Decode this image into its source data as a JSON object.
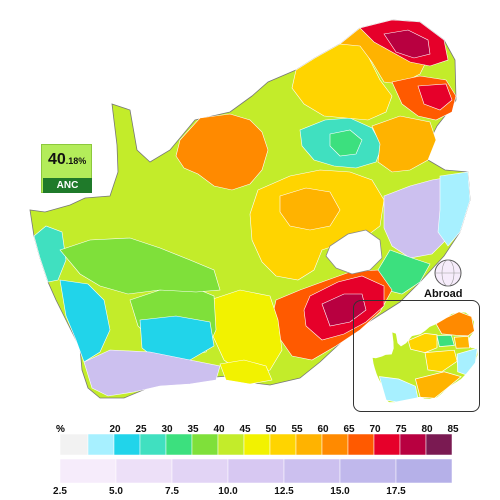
{
  "headline": {
    "value_main": "40",
    "value_frac": ".18%",
    "party": "ANC"
  },
  "abroad_label": "Abroad",
  "legend": {
    "unit": "%",
    "top_scale": {
      "labels": [
        "20",
        "25",
        "30",
        "35",
        "40",
        "45",
        "50",
        "55",
        "60",
        "65",
        "70",
        "75",
        "80",
        "85"
      ],
      "colors": [
        "#f2f2f2",
        "#a7f0ff",
        "#21d4ea",
        "#40e0c0",
        "#3ce07e",
        "#7fe03a",
        "#c3ec2a",
        "#f2f200",
        "#ffd400",
        "#ffb300",
        "#ff8a00",
        "#ff5a00",
        "#e6002a",
        "#b80040",
        "#7a1a52"
      ]
    },
    "bottom_scale": {
      "labels": [
        "2.5",
        "5.0",
        "7.5",
        "10.0",
        "12.5",
        "15.0",
        "17.5"
      ],
      "colors": [
        "#f6ecfb",
        "#ede0f8",
        "#e2d4f5",
        "#d7c8f2",
        "#ccc0ef",
        "#c0b8ec",
        "#b5b0e8"
      ]
    }
  },
  "map_colors": {
    "band_15_20": "#c7f2f7",
    "band_20_25": "#a7f0ff",
    "band_25_30": "#21d4ea",
    "band_30_35": "#40e0c0",
    "band_35_40": "#3ce07e",
    "band_40_45": "#7fe03a",
    "band_45_50": "#c3ec2a",
    "band_50_55": "#f2f200",
    "band_55_60": "#ffd400",
    "band_60_65": "#ffb300",
    "band_65_70": "#ff8a00",
    "band_70_75": "#ff5a00",
    "band_75_80": "#e6002a",
    "band_80_85": "#b80040",
    "band_85_plus": "#7a1a52",
    "minority_low": "#e2d4f5",
    "minority_mid": "#ccc0ef",
    "lesotho": "#ffffff",
    "borders": "#ffffff"
  }
}
